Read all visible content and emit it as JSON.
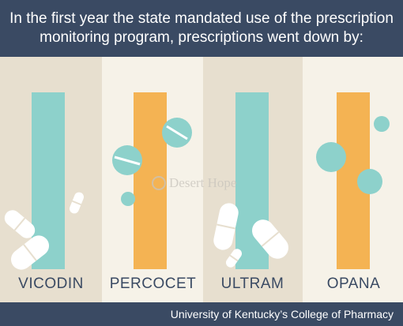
{
  "header": {
    "line1": "In the first year the state mandated use of the prescription",
    "line2": "monitoring program, prescriptions went down by:"
  },
  "footer": {
    "source": "University of Kentucky’s College of Pharmacy"
  },
  "watermark": {
    "text": "Desert Hope"
  },
  "colors": {
    "header_bg": "#3a4a63",
    "teal": "#8dd1cb",
    "orange": "#f4b353",
    "column_dark": "#e7dfcf",
    "column_light": "#f6f2e8",
    "pill_white": "#ffffff"
  },
  "icons": [
    "pill-capsule-icon",
    "round-tablet-icon",
    "desert-hope-logo-icon"
  ],
  "chart_data": {
    "type": "bar",
    "title": "In the first year the state mandated use of the prescription monitoring program, prescriptions went down by:",
    "categories": [
      "VICODIN",
      "PERCOCET",
      "ULTRAM",
      "OPANA"
    ],
    "values": [
      null,
      null,
      null,
      null
    ],
    "bar_colors": [
      "#8dd1cb",
      "#f4b353",
      "#8dd1cb",
      "#f4b353"
    ],
    "grid": false,
    "legend": "none"
  }
}
